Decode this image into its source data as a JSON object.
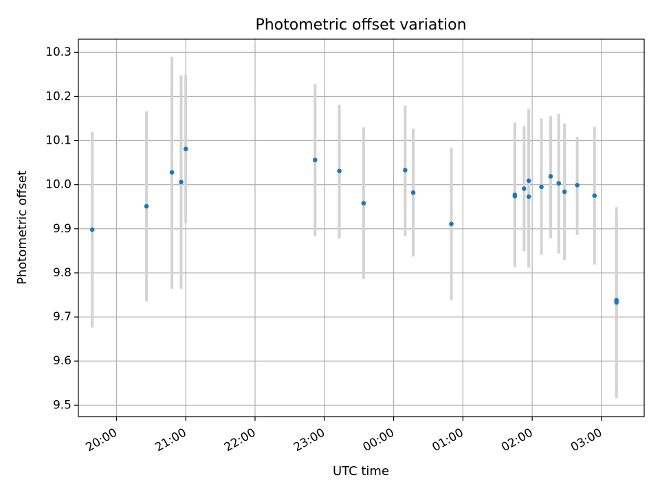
{
  "chart_data": {
    "type": "scatter",
    "title": "Photometric offset variation",
    "xlabel": "UTC time",
    "ylabel": "Photometric offset",
    "x_ticks": [
      "20:00",
      "21:00",
      "22:00",
      "23:00",
      "00:00",
      "01:00",
      "02:00",
      "03:00"
    ],
    "y_ticks": [
      "9.5",
      "9.6",
      "9.7",
      "9.8",
      "9.9",
      "10.0",
      "10.1",
      "10.2",
      "10.3"
    ],
    "xlim": [
      "19:27",
      "03:37"
    ],
    "ylim": [
      9.474,
      10.33
    ],
    "grid": true,
    "marker_color": "#1f77b4",
    "errorbar_color": "#d3d3d3",
    "points": [
      {
        "time": "19:39",
        "value": 9.898,
        "low": 9.676,
        "high": 10.12
      },
      {
        "time": "20:26",
        "value": 9.951,
        "low": 9.735,
        "high": 10.166
      },
      {
        "time": "20:48",
        "value": 10.028,
        "low": 9.764,
        "high": 10.29
      },
      {
        "time": "20:56",
        "value": 10.006,
        "low": 9.764,
        "high": 10.248
      },
      {
        "time": "21:00",
        "value": 10.081,
        "low": 9.913,
        "high": 10.248
      },
      {
        "time": "22:52",
        "value": 10.056,
        "low": 9.884,
        "high": 10.228
      },
      {
        "time": "23:13",
        "value": 10.031,
        "low": 9.878,
        "high": 10.181
      },
      {
        "time": "23:34",
        "value": 9.958,
        "low": 9.786,
        "high": 10.13
      },
      {
        "time": "00:10",
        "value": 10.033,
        "low": 9.884,
        "high": 10.18
      },
      {
        "time": "00:17",
        "value": 9.982,
        "low": 9.837,
        "high": 10.127
      },
      {
        "time": "00:50",
        "value": 9.911,
        "low": 9.738,
        "high": 10.084
      },
      {
        "time": "01:45",
        "value": 9.977,
        "low": 9.814,
        "high": 10.141
      },
      {
        "time": "01:45",
        "value": 9.974,
        "low": 9.813,
        "high": 10.136
      },
      {
        "time": "01:53",
        "value": 9.991,
        "low": 9.849,
        "high": 10.133
      },
      {
        "time": "01:57",
        "value": 10.009,
        "low": 9.846,
        "high": 10.172
      },
      {
        "time": "01:57",
        "value": 9.973,
        "low": 9.812,
        "high": 10.134
      },
      {
        "time": "02:08",
        "value": 9.995,
        "low": 9.841,
        "high": 10.15
      },
      {
        "time": "02:16",
        "value": 10.019,
        "low": 9.878,
        "high": 10.156
      },
      {
        "time": "02:23",
        "value": 10.003,
        "low": 9.844,
        "high": 10.16
      },
      {
        "time": "02:28",
        "value": 9.984,
        "low": 9.829,
        "high": 10.139
      },
      {
        "time": "02:39",
        "value": 9.999,
        "low": 9.886,
        "high": 10.108
      },
      {
        "time": "02:54",
        "value": 9.975,
        "low": 9.819,
        "high": 10.131
      },
      {
        "time": "03:13",
        "value": 9.738,
        "low": 9.516,
        "high": 9.949
      },
      {
        "time": "03:13",
        "value": 9.733,
        "low": 9.535,
        "high": 9.939
      }
    ]
  }
}
